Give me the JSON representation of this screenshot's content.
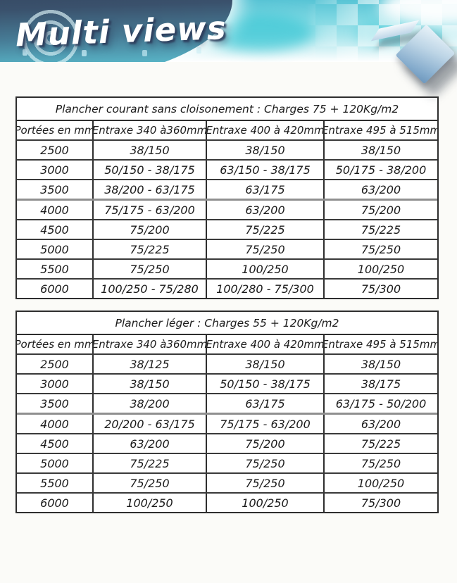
{
  "header": {
    "logo_text": "Multi views",
    "colors": {
      "banner_cyan": "#7ed7e2",
      "banner_dark": "#2e3a53",
      "diamond_blue": "#84abcc"
    }
  },
  "tables": [
    {
      "title": "Plancher courant sans cloisonement : Charges 75 + 120Kg/m2",
      "columns": [
        "Portées en mm",
        "Entraxe 340 à360mm",
        "Entraxe 400 à 420mm",
        "Entraxe 495 à 515mm"
      ],
      "divider_above_row": "4000",
      "rows": [
        {
          "portee": "2500",
          "values": [
            "38/150",
            "38/150",
            "38/150"
          ]
        },
        {
          "portee": "3000",
          "values": [
            "50/150 - 38/175",
            "63/150 - 38/175",
            "50/175 - 38/200"
          ]
        },
        {
          "portee": "3500",
          "values": [
            "38/200 - 63/175",
            "63/175",
            "63/200"
          ]
        },
        {
          "portee": "4000",
          "values": [
            "75/175 - 63/200",
            "63/200",
            "75/200"
          ]
        },
        {
          "portee": "4500",
          "values": [
            "75/200",
            "75/225",
            "75/225"
          ]
        },
        {
          "portee": "5000",
          "values": [
            "75/225",
            "75/250",
            "75/250"
          ]
        },
        {
          "portee": "5500",
          "values": [
            "75/250",
            "100/250",
            "100/250"
          ]
        },
        {
          "portee": "6000",
          "values": [
            "100/250 - 75/280",
            "100/280 - 75/300",
            "75/300"
          ]
        }
      ]
    },
    {
      "title": "Plancher léger : Charges 55 + 120Kg/m2",
      "columns": [
        "Portées en mm",
        "Entraxe 340 à360mm",
        "Entraxe 400 à 420mm",
        "Entraxe 495 à 515mm"
      ],
      "divider_above_row": "4000",
      "rows": [
        {
          "portee": "2500",
          "values": [
            "38/125",
            "38/150",
            "38/150"
          ]
        },
        {
          "portee": "3000",
          "values": [
            "38/150",
            "50/150 - 38/175",
            "38/175"
          ]
        },
        {
          "portee": "3500",
          "values": [
            "38/200",
            "63/175",
            "63/175 - 50/200"
          ]
        },
        {
          "portee": "4000",
          "values": [
            "20/200 - 63/175",
            "75/175 - 63/200",
            "63/200"
          ]
        },
        {
          "portee": "4500",
          "values": [
            "63/200",
            "75/200",
            "75/225"
          ]
        },
        {
          "portee": "5000",
          "values": [
            "75/225",
            "75/250",
            "75/250"
          ]
        },
        {
          "portee": "5500",
          "values": [
            "75/250",
            "75/250",
            "100/250"
          ]
        },
        {
          "portee": "6000",
          "values": [
            "100/250",
            "100/250",
            "75/300"
          ]
        }
      ]
    }
  ]
}
